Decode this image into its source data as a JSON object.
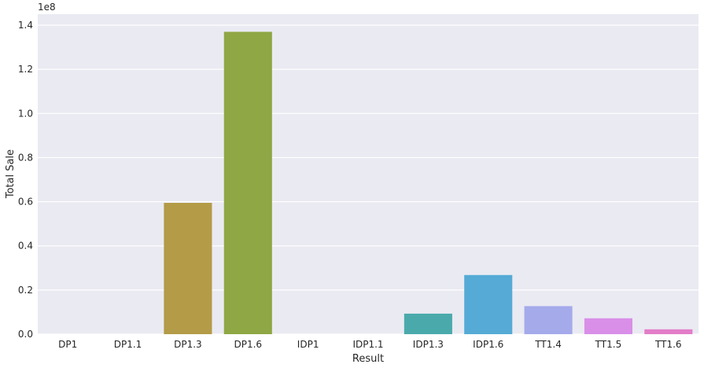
{
  "chart_data": {
    "type": "bar",
    "xlabel": "Result",
    "ylabel": "Total Sale",
    "offset_label": "1e8",
    "categories": [
      "DP1",
      "DP1.1",
      "DP1.3",
      "DP1.6",
      "IDP1",
      "IDP1.1",
      "IDP1.3",
      "IDP1.6",
      "TT1.4",
      "TT1.5",
      "TT1.6"
    ],
    "values": [
      0,
      0,
      59500000,
      137000000,
      0,
      0,
      9300000,
      26800000,
      12700000,
      7200000,
      2200000
    ],
    "colors": [
      "#f77189",
      "#e08b31",
      "#b39b47",
      "#8fa744",
      "#50b131",
      "#37ae8e",
      "#4aaaab",
      "#55abd6",
      "#a5aaeb",
      "#d98fe8",
      "#e37dc8"
    ],
    "ylim": [
      0,
      145000000
    ],
    "yticks": [
      0,
      20000000,
      40000000,
      60000000,
      80000000,
      100000000,
      120000000,
      140000000
    ],
    "ytick_labels": [
      "0.0",
      "0.2",
      "0.4",
      "0.6",
      "0.8",
      "1.0",
      "1.2",
      "1.4"
    ],
    "grid": true,
    "background": "#eaeaf2"
  }
}
